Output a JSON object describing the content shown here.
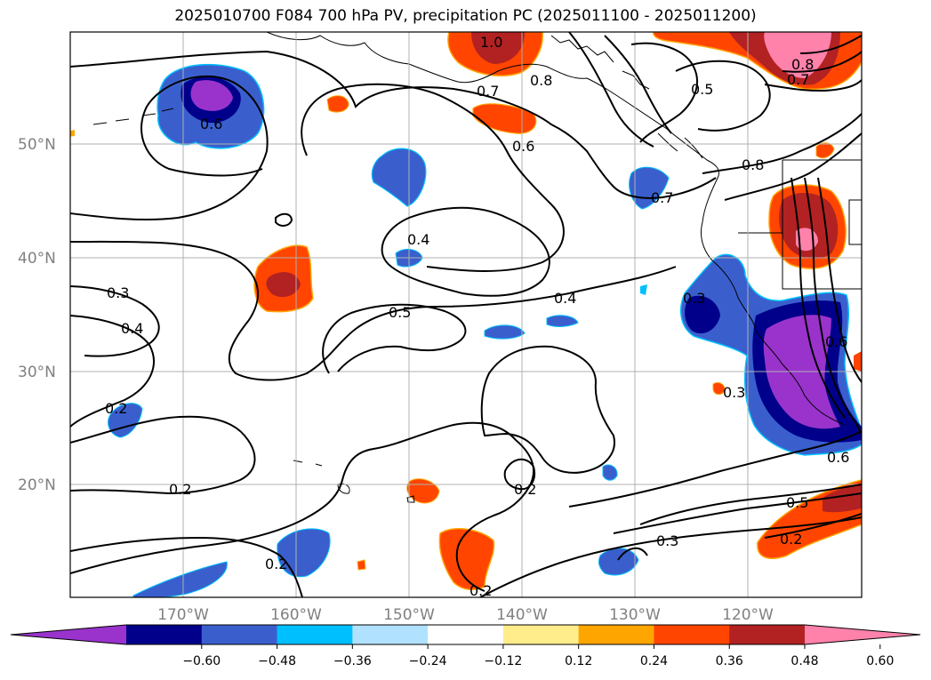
{
  "title": "2025010700 F084 700 hPa PV, precipitation PC (2025011100 - 2025011200)",
  "map": {
    "lat_labels": [
      "50°N",
      "40°N",
      "30°N",
      "20°N"
    ],
    "lon_labels": [
      "170°W",
      "160°W",
      "150°W",
      "140°W",
      "130°W",
      "120°W"
    ],
    "contour_labels": [
      "1.0",
      "0.8",
      "0.7",
      "0.6",
      "0.5",
      "0.8",
      "0.7",
      "0.6",
      "0.7",
      "0.8",
      "0.4",
      "0.3",
      "0.4",
      "0.5",
      "0.4",
      "0.3",
      "0.3",
      "0.2",
      "0.2",
      "0.2",
      "0.2",
      "0.3",
      "0.2",
      "0.5",
      "0.2",
      "0.6",
      "0.6"
    ]
  },
  "colorbar": {
    "levels": [
      -0.72,
      -0.6,
      -0.48,
      -0.36,
      -0.24,
      -0.12,
      0.12,
      0.24,
      0.36,
      0.48,
      0.6,
      0.72
    ],
    "colors": [
      "#9933cc",
      "#00008b",
      "#3a5fcd",
      "#00bfff",
      "#b0e2ff",
      "#ffffff",
      "#ffec8b",
      "#ffa500",
      "#ff4500",
      "#b22222",
      "#ff82ab"
    ],
    "tick_labels": [
      "−0.60",
      "−0.48",
      "−0.36",
      "−0.24",
      "−0.12",
      "0.12",
      "0.24",
      "0.36",
      "0.48",
      "0.60"
    ]
  }
}
